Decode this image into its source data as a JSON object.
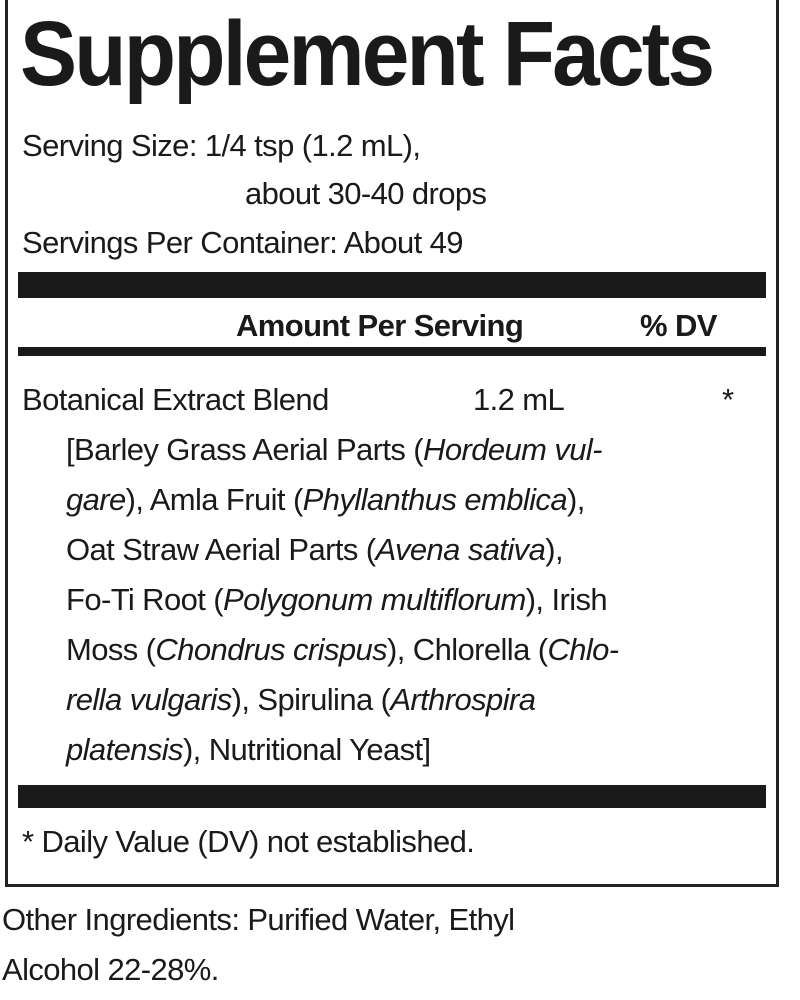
{
  "title": "Supplement Facts",
  "serving_size_line1": "Serving Size: 1/4 tsp (1.2 mL),",
  "serving_size_line2": "about 30-40 drops",
  "servings_per_container": "Servings Per Container: About 49",
  "header": {
    "amount": "Amount Per Serving",
    "dv": "% DV"
  },
  "item": {
    "name": "Botanical Extract Blend",
    "amount": "1.2 mL",
    "dv": "*"
  },
  "ingredient_lines": [
    [
      {
        "t": "[Barley Grass Aerial Parts ("
      },
      {
        "t": "Hordeum vul-",
        "i": true
      }
    ],
    [
      {
        "t": "gare",
        "i": true
      },
      {
        "t": "), Amla Fruit ("
      },
      {
        "t": "Phyllanthus emblica",
        "i": true
      },
      {
        "t": "),"
      }
    ],
    [
      {
        "t": "Oat Straw Aerial Parts ("
      },
      {
        "t": "Avena sativa",
        "i": true
      },
      {
        "t": "),"
      }
    ],
    [
      {
        "t": "Fo-Ti Root ("
      },
      {
        "t": "Polygonum multiflorum",
        "i": true
      },
      {
        "t": "), Irish"
      }
    ],
    [
      {
        "t": "Moss ("
      },
      {
        "t": "Chondrus crispus",
        "i": true
      },
      {
        "t": "), Chlorella ("
      },
      {
        "t": "Chlo-",
        "i": true
      }
    ],
    [
      {
        "t": "rella vulgaris",
        "i": true
      },
      {
        "t": "), Spirulina ("
      },
      {
        "t": "Arthrospira",
        "i": true
      }
    ],
    [
      {
        "t": "platensis",
        "i": true
      },
      {
        "t": "), Nutritional Yeast]"
      }
    ]
  ],
  "footnote": "* Daily Value (DV) not established.",
  "other_ingredients_line1": "Other Ingredients: Purified Water, Ethyl",
  "other_ingredients_line2": "Alcohol 22-28%."
}
